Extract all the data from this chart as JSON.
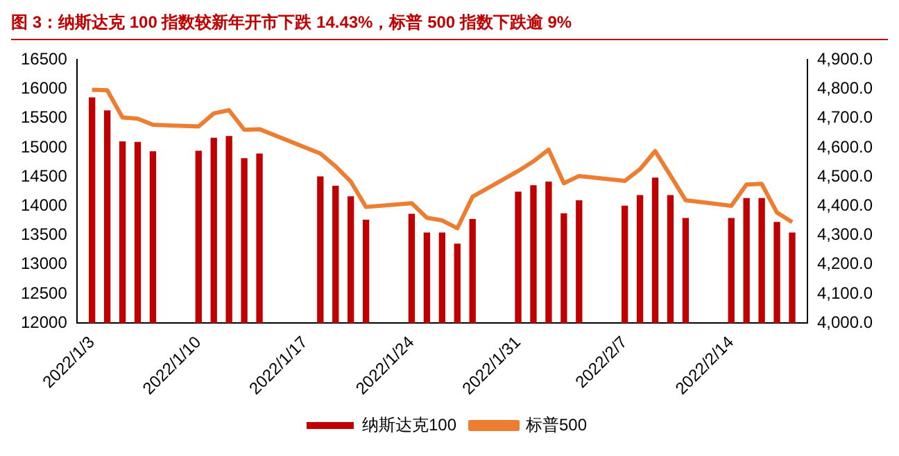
{
  "chart_data": {
    "type": "bar",
    "title": "图 3：纳斯达克 100 指数较新年开市下跌 14.43%，标普 500 指数下跌逾 9%",
    "x": [
      "2022-01-03",
      "2022-01-04",
      "2022-01-05",
      "2022-01-06",
      "2022-01-07",
      "2022-01-10",
      "2022-01-11",
      "2022-01-12",
      "2022-01-13",
      "2022-01-14",
      "2022-01-18",
      "2022-01-19",
      "2022-01-20",
      "2022-01-21",
      "2022-01-24",
      "2022-01-25",
      "2022-01-26",
      "2022-01-27",
      "2022-01-28",
      "2022-01-31",
      "2022-02-01",
      "2022-02-02",
      "2022-02-03",
      "2022-02-04",
      "2022-02-07",
      "2022-02-08",
      "2022-02-09",
      "2022-02-10",
      "2022-02-11",
      "2022-02-14",
      "2022-02-15",
      "2022-02-16",
      "2022-02-17",
      "2022-02-18"
    ],
    "series": [
      {
        "name": "纳斯达克100",
        "color": "#c00000",
        "values": [
          15850,
          15630,
          15100,
          15090,
          14930,
          14940,
          15160,
          15190,
          14810,
          14890,
          14500,
          14340,
          14160,
          13760,
          13860,
          13540,
          13540,
          13350,
          13770,
          14240,
          14350,
          14410,
          13870,
          14090,
          14000,
          14180,
          14480,
          14180,
          13790,
          13790,
          14130,
          14130,
          13720,
          13540
        ]
      },
      {
        "name": "标普500",
        "type": "line",
        "axis": "y2",
        "color": "#ed7d31",
        "values": [
          4798,
          4796,
          4703,
          4699,
          4678,
          4672,
          4717,
          4728,
          4661,
          4663,
          4580,
          4536,
          4484,
          4397,
          4410,
          4360,
          4351,
          4324,
          4432,
          4520,
          4553,
          4593,
          4478,
          4503,
          4486,
          4526,
          4588,
          4505,
          4420,
          4401,
          4474,
          4476,
          4378,
          4345
        ]
      }
    ],
    "xlim": [
      "2022-01-02",
      "2022-02-19"
    ],
    "xticks": [
      {
        "value": "2022-01-03",
        "label": "2022/1/3"
      },
      {
        "value": "2022-01-10",
        "label": "2022/1/10"
      },
      {
        "value": "2022-01-17",
        "label": "2022/1/17"
      },
      {
        "value": "2022-01-24",
        "label": "2022/1/24"
      },
      {
        "value": "2022-01-31",
        "label": "2022/1/31"
      },
      {
        "value": "2022-02-07",
        "label": "2022/2/7"
      },
      {
        "value": "2022-02-14",
        "label": "2022/2/14"
      }
    ],
    "ylim": [
      12000,
      16500
    ],
    "yticks": [
      12000,
      12500,
      13000,
      13500,
      14000,
      14500,
      15000,
      15500,
      16000,
      16500
    ],
    "y2lim": [
      4000,
      4900
    ],
    "y2ticks": [
      {
        "value": 4000,
        "label": "4,000.0"
      },
      {
        "value": 4100,
        "label": "4,100.0"
      },
      {
        "value": 4200,
        "label": "4,200.0"
      },
      {
        "value": 4300,
        "label": "4,300.0"
      },
      {
        "value": 4400,
        "label": "4,400.0"
      },
      {
        "value": 4500,
        "label": "4,500.0"
      },
      {
        "value": 4600,
        "label": "4,600.0"
      },
      {
        "value": 4700,
        "label": "4,700.0"
      },
      {
        "value": 4800,
        "label": "4,800.0"
      },
      {
        "value": 4900,
        "label": "4,900.0"
      }
    ],
    "grid": false,
    "legend": "bottom",
    "marker": "none",
    "line_style": "solid"
  }
}
